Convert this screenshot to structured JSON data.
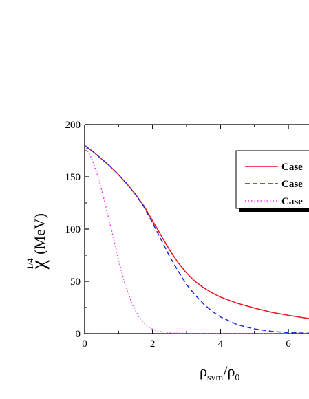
{
  "chart_data": {
    "type": "line",
    "xlabel": {
      "main": "ρ",
      "sub1": "sym",
      "sep": "/ρ",
      "sub2": "0"
    },
    "ylabel": {
      "greek": "χ",
      "sup": "1/4",
      "unit": " (MeV)"
    },
    "xlim": [
      0,
      6.8
    ],
    "ylim": [
      0,
      200
    ],
    "xticks": [
      0,
      2,
      4,
      6
    ],
    "yticks": [
      0,
      50,
      100,
      150,
      200
    ],
    "grid": false,
    "legend_position": "top-right",
    "series": [
      {
        "name": "Case",
        "color": "#e8141c",
        "dash": "solid",
        "x": [
          0,
          0.25,
          0.5,
          0.75,
          1.0,
          1.25,
          1.5,
          1.75,
          2.0,
          2.25,
          2.5,
          2.75,
          3.0,
          3.25,
          3.5,
          3.75,
          4.0,
          4.5,
          5.0,
          5.5,
          6.0,
          6.5,
          6.8
        ],
        "y": [
          180,
          174,
          167,
          160,
          152,
          143,
          133,
          122,
          108,
          94,
          80,
          68,
          58,
          50,
          44,
          39,
          35,
          29,
          24.5,
          20.5,
          17.5,
          15,
          13.5
        ]
      },
      {
        "name": "Case",
        "color": "#1f26e0",
        "dash": "dashed",
        "x": [
          0,
          0.25,
          0.5,
          0.75,
          1.0,
          1.25,
          1.5,
          1.75,
          2.0,
          2.25,
          2.5,
          2.75,
          3.0,
          3.25,
          3.5,
          3.75,
          4.0,
          4.5,
          5.0,
          5.5,
          6.0,
          6.5,
          6.8
        ],
        "y": [
          180,
          174,
          167,
          160,
          152,
          143,
          133,
          121,
          106,
          90,
          74,
          60,
          47,
          37,
          28.5,
          21.5,
          16,
          8.5,
          4.5,
          2.2,
          1,
          0.5,
          0.3
        ]
      },
      {
        "name": "Case",
        "color": "#e62be6",
        "dash": "dotted",
        "x": [
          0,
          0.2,
          0.4,
          0.6,
          0.8,
          1.0,
          1.2,
          1.4,
          1.6,
          1.8,
          2.0,
          2.2,
          2.5,
          3.0,
          3.5,
          4.0,
          5.0,
          6.0,
          6.8
        ],
        "y": [
          180,
          168,
          150,
          125,
          98,
          70,
          46,
          28,
          16,
          8.5,
          4.2,
          2,
          0.7,
          0.1,
          0,
          0,
          0,
          0,
          0
        ]
      }
    ]
  }
}
